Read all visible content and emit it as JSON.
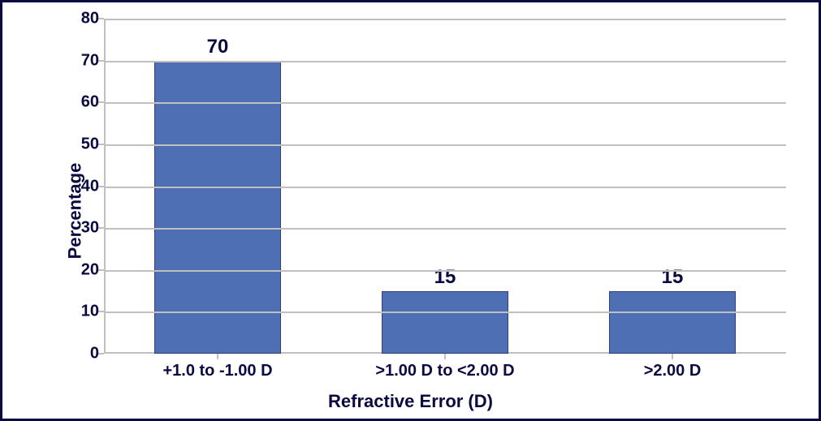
{
  "chart": {
    "type": "bar",
    "ylabel": "Percentage",
    "xlabel": "Refractive Error (D)",
    "categories": [
      "+1.0 to -1.00 D",
      ">1.00 D to <2.00 D",
      ">2.00 D"
    ],
    "values": [
      70,
      15,
      15
    ],
    "value_labels": [
      "70",
      "15",
      "15"
    ],
    "bar_color": "#4f6fb5",
    "bar_border_color": "#2e3f73",
    "bar_border_width": 1,
    "bar_width": 0.56,
    "background_color": "#ffffff",
    "grid_color": "#c0c0c0",
    "axis_color": "#c0c0c0",
    "outer_border_color": "#0a0a40",
    "text_color": "#0a0a40",
    "ylim": [
      0,
      80
    ],
    "ytick_step": 10,
    "yticks": [
      0,
      10,
      20,
      30,
      40,
      50,
      60,
      70,
      80
    ],
    "label_fontsize": 20,
    "axis_label_fontsize": 22,
    "value_fontsize": 24
  }
}
